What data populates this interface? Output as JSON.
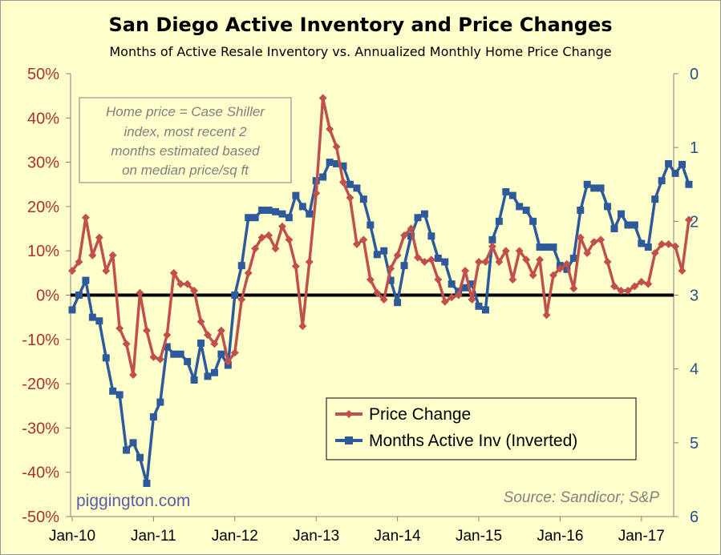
{
  "chart_data": {
    "type": "line",
    "title": "San Diego Active Inventory and Price Changes",
    "subtitle": "Months of Active Resale Inventory vs. Annualized Monthly Home Price Change",
    "x_tick_labels": [
      "Jan-10",
      "Jan-11",
      "Jan-12",
      "Jan-13",
      "Jan-14",
      "Jan-15",
      "Jan-16",
      "Jan-17"
    ],
    "left_axis": {
      "ylim": [
        -50,
        50
      ],
      "ticks": [
        -50,
        -40,
        -30,
        -20,
        -10,
        0,
        10,
        20,
        30,
        40,
        50
      ],
      "tick_labels": [
        "-50%",
        "-40%",
        "-30%",
        "-20%",
        "-10%",
        "0%",
        "10%",
        "20%",
        "30%",
        "40%",
        "50%"
      ]
    },
    "right_axis": {
      "ylim": [
        0,
        6
      ],
      "inverted": true,
      "ticks": [
        0,
        1,
        2,
        3,
        4,
        5,
        6
      ],
      "tick_labels": [
        "0",
        "1",
        "2",
        "3",
        "4",
        "5",
        "6"
      ]
    },
    "x_start": "Jan-10",
    "x_step": "1 month",
    "reference_line_y": 0,
    "colors": {
      "price": "#c0504d",
      "inventory": "#2e5a9c",
      "background": "#ffffcc",
      "zero_line": "#000000"
    },
    "series": [
      {
        "name": "Price Change",
        "axis": "left",
        "values": [
          5.5,
          7.5,
          17.5,
          9,
          13,
          5.5,
          9,
          -7.5,
          -11,
          -18,
          0.5,
          -8,
          -14,
          -14.5,
          -9,
          5,
          2.5,
          2.5,
          1,
          -6,
          -9,
          -11,
          -8,
          -15,
          -13,
          -1,
          5,
          10.5,
          13,
          13.5,
          10.5,
          15.5,
          12.5,
          6.5,
          -7,
          7.5,
          23,
          44.5,
          37.5,
          33.5,
          25.5,
          22,
          11.5,
          12.5,
          3.5,
          0.5,
          -1,
          6,
          9,
          13.5,
          15,
          8.5,
          7.5,
          8,
          3.5,
          -1.5,
          -0.5,
          0,
          5.5,
          -1,
          7.5,
          7.5,
          11,
          7.5,
          10,
          3.5,
          10,
          8,
          4.5,
          8,
          -4.5,
          4.5,
          6,
          7,
          1.5,
          13,
          9.5,
          12,
          12.5,
          7.5,
          2,
          1,
          1,
          2,
          3,
          2.5,
          9.5,
          11.5,
          11.5,
          11,
          5.5,
          17
        ]
      },
      {
        "name": "Months Active Inv (Inverted)",
        "axis": "right",
        "values": [
          3.2,
          3,
          2.8,
          3.3,
          3.35,
          3.85,
          4.3,
          4.35,
          5.1,
          5.0,
          5.2,
          5.55,
          4.65,
          4.45,
          3.7,
          3.8,
          3.8,
          3.9,
          4.15,
          3.65,
          4.1,
          4.05,
          3.8,
          3.95,
          3.0,
          2.6,
          1.95,
          1.95,
          1.85,
          1.85,
          1.87,
          1.9,
          1.95,
          1.65,
          1.8,
          1.9,
          1.45,
          1.4,
          1.2,
          1.22,
          1.25,
          1.5,
          1.55,
          1.7,
          2.05,
          2.45,
          2.4,
          2.8,
          3.1,
          2.6,
          2.2,
          1.95,
          1.9,
          2.2,
          2.5,
          2.55,
          2.85,
          2.95,
          2.9,
          2.85,
          3.15,
          3.2,
          2.25,
          2.0,
          1.6,
          1.65,
          1.8,
          1.85,
          2.0,
          2.35,
          2.35,
          2.35,
          2.6,
          2.65,
          2.5,
          1.85,
          1.5,
          1.55,
          1.55,
          1.8,
          2.1,
          1.9,
          2.05,
          2.05,
          2.3,
          2.35,
          1.7,
          1.45,
          1.22,
          1.35,
          1.23,
          1.5
        ]
      }
    ],
    "legend": {
      "placement": "bottom-right",
      "entries": [
        "Price Change",
        "Months Active Inv (Inverted)"
      ]
    },
    "annotations": {
      "note_lines": [
        "Home price = Case Shiller",
        "index, most recent 2",
        "months estimated based",
        "on median price/sq ft"
      ],
      "source": "Source: Sandicor; S&P",
      "watermark": "piggington.com"
    }
  }
}
